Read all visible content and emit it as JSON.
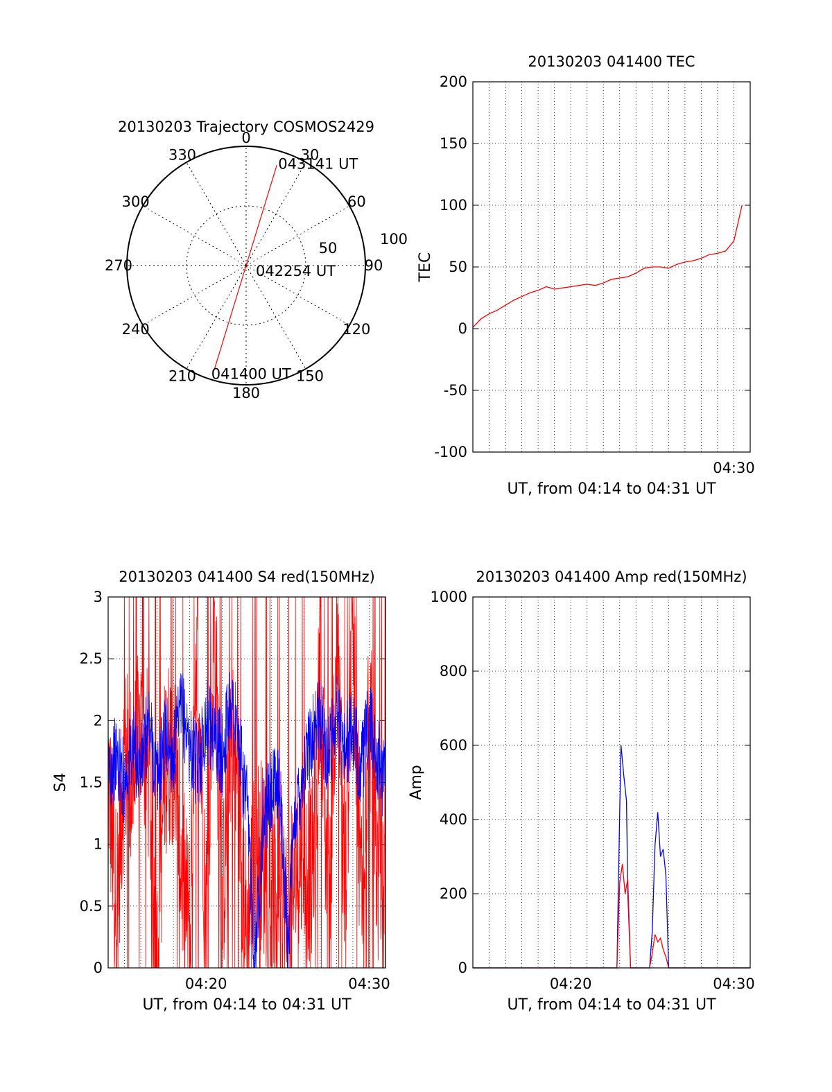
{
  "chart_data": [
    {
      "type": "polar",
      "title": "20130203 Trajectory COSMOS2429",
      "theta_zero": "top",
      "theta_direction": "clockwise",
      "azimuth_labels": [
        "0",
        "30",
        "60",
        "90",
        "120",
        "150",
        "180",
        "210",
        "240",
        "270",
        "300",
        "330"
      ],
      "radial_circle_labels": [
        "50",
        "100"
      ],
      "radial_max": 100,
      "grid": true,
      "trajectory": {
        "color": "#ff0000",
        "points": [
          {
            "azimuth": 197,
            "radius": 92,
            "label": "041400 UT"
          },
          {
            "azimuth": 0,
            "radius": 0,
            "label": "042254 UT"
          },
          {
            "azimuth": 17,
            "radius": 88,
            "label": "043141 UT"
          }
        ]
      }
    },
    {
      "type": "line",
      "title": "20130203 041400 TEC",
      "xlabel": "UT, from 04:14 to 04:31 UT",
      "ylabel": "TEC",
      "ylim": [
        -100,
        200
      ],
      "yticks": [
        "-100",
        "-50",
        "0",
        "50",
        "100",
        "150",
        "200"
      ],
      "xticks": [
        "04:30"
      ],
      "grid": true,
      "series": [
        {
          "color": "#ff0000",
          "x": [
            "04:14:00",
            "04:14:30",
            "04:15:00",
            "04:15:30",
            "04:16:00",
            "04:16:30",
            "04:17:00",
            "04:17:30",
            "04:18:00",
            "04:18:30",
            "04:19:00",
            "04:19:30",
            "04:20:00",
            "04:20:30",
            "04:21:00",
            "04:21:30",
            "04:22:00",
            "04:22:30",
            "04:23:00",
            "04:23:30",
            "04:24:00",
            "04:24:30",
            "04:25:00",
            "04:25:30",
            "04:26:00",
            "04:26:30",
            "04:27:00",
            "04:27:30",
            "04:28:00",
            "04:28:30",
            "04:29:00",
            "04:29:30",
            "04:30:00",
            "04:30:30"
          ],
          "values": [
            1,
            8,
            12,
            15,
            19,
            23,
            26,
            29,
            31,
            34,
            32,
            33,
            34,
            35,
            36,
            35,
            37,
            40,
            41,
            42,
            45,
            49,
            50,
            50,
            49,
            52,
            54,
            55,
            57,
            60,
            61,
            63,
            71,
            100
          ]
        }
      ]
    },
    {
      "type": "line",
      "title": "20130203 041400 S4 red(150MHz)",
      "xlabel": "UT, from 04:14 to 04:31 UT",
      "ylabel": "S4",
      "ylim": [
        0,
        3
      ],
      "yticks": [
        "0",
        "0.5",
        "1",
        "1.5",
        "2",
        "2.5",
        "3"
      ],
      "xticks": [
        "04:20",
        "04:30"
      ],
      "grid": true,
      "series": [
        {
          "color": "#ff0000",
          "x": [
            "04:14:00",
            "04:14:30",
            "04:15:00",
            "04:15:30",
            "04:16:00",
            "04:16:30",
            "04:17:00",
            "04:17:30",
            "04:18:00",
            "04:18:30",
            "04:19:00",
            "04:19:30",
            "04:20:00",
            "04:20:30",
            "04:21:00",
            "04:21:30",
            "04:22:00",
            "04:22:30",
            "04:23:00",
            "04:23:30",
            "04:24:00",
            "04:24:30",
            "04:25:00",
            "04:25:30",
            "04:26:00",
            "04:26:30",
            "04:27:00",
            "04:27:30",
            "04:28:00",
            "04:28:30",
            "04:29:00",
            "04:29:30",
            "04:30:00",
            "04:30:30",
            "04:31:00"
          ],
          "values": [
            1.6,
            0.5,
            1.7,
            1.5,
            1.9,
            1.6,
            0.1,
            1.7,
            1.8,
            0.8,
            0.3,
            2.6,
            0.4,
            2.8,
            0.5,
            1.9,
            1.4,
            0.2,
            1.0,
            0.9,
            0.5,
            0.8,
            0.3,
            0.8,
            1.0,
            0.7,
            2.4,
            0.3,
            2.7,
            0.5,
            2.9,
            0.6,
            2.2,
            0.8,
            0.5
          ]
        },
        {
          "color": "#0000ff",
          "x": [
            "04:14:00",
            "04:14:30",
            "04:15:00",
            "04:15:30",
            "04:16:00",
            "04:16:30",
            "04:17:00",
            "04:17:30",
            "04:18:00",
            "04:18:30",
            "04:19:00",
            "04:19:30",
            "04:20:00",
            "04:20:30",
            "04:21:00",
            "04:21:30",
            "04:22:00",
            "04:22:30",
            "04:23:00",
            "04:23:30",
            "04:24:00",
            "04:24:30",
            "04:25:00",
            "04:25:30",
            "04:26:00",
            "04:26:30",
            "04:27:00",
            "04:27:30",
            "04:28:00",
            "04:28:30",
            "04:29:00",
            "04:29:30",
            "04:30:00",
            "04:30:30",
            "04:31:00"
          ],
          "values": [
            1.6,
            1.7,
            1.5,
            1.8,
            1.6,
            2.0,
            1.5,
            1.9,
            1.7,
            2.1,
            1.8,
            1.6,
            2.0,
            1.9,
            1.7,
            2.2,
            1.8,
            1.3,
            0.1,
            1.2,
            1.4,
            1.5,
            0.2,
            1.3,
            1.6,
            1.9,
            2.0,
            1.7,
            2.1,
            1.8,
            1.9,
            1.6,
            2.0,
            1.7,
            1.5
          ]
        }
      ]
    },
    {
      "type": "line",
      "title": "20130203 041400 Amp red(150MHz)",
      "xlabel": "UT, from 04:14 to 04:31 UT",
      "ylabel": "Amp",
      "ylim": [
        0,
        1000
      ],
      "yticks": [
        "0",
        "200",
        "400",
        "600",
        "800",
        "1000"
      ],
      "xticks": [
        "04:20",
        "04:30"
      ],
      "grid": true,
      "series": [
        {
          "color": "#0000ff",
          "x": [
            "04:14:00",
            "04:22:50",
            "04:23:00",
            "04:23:05",
            "04:23:15",
            "04:23:25",
            "04:23:30",
            "04:23:40",
            "04:24:50",
            "04:25:00",
            "04:25:10",
            "04:25:20",
            "04:25:30",
            "04:25:40",
            "04:25:50",
            "04:26:00",
            "04:31:00"
          ],
          "values": [
            0,
            0,
            420,
            600,
            520,
            450,
            200,
            0,
            0,
            100,
            330,
            420,
            300,
            320,
            250,
            0,
            0
          ]
        },
        {
          "color": "#ff0000",
          "x": [
            "04:14:00",
            "04:22:50",
            "04:23:00",
            "04:23:10",
            "04:23:20",
            "04:23:30",
            "04:23:40",
            "04:24:50",
            "04:25:00",
            "04:25:10",
            "04:25:20",
            "04:25:30",
            "04:25:40",
            "04:25:50",
            "04:26:00",
            "04:31:00"
          ],
          "values": [
            0,
            0,
            230,
            280,
            200,
            240,
            0,
            0,
            40,
            90,
            70,
            80,
            50,
            30,
            0,
            0
          ]
        }
      ]
    }
  ]
}
